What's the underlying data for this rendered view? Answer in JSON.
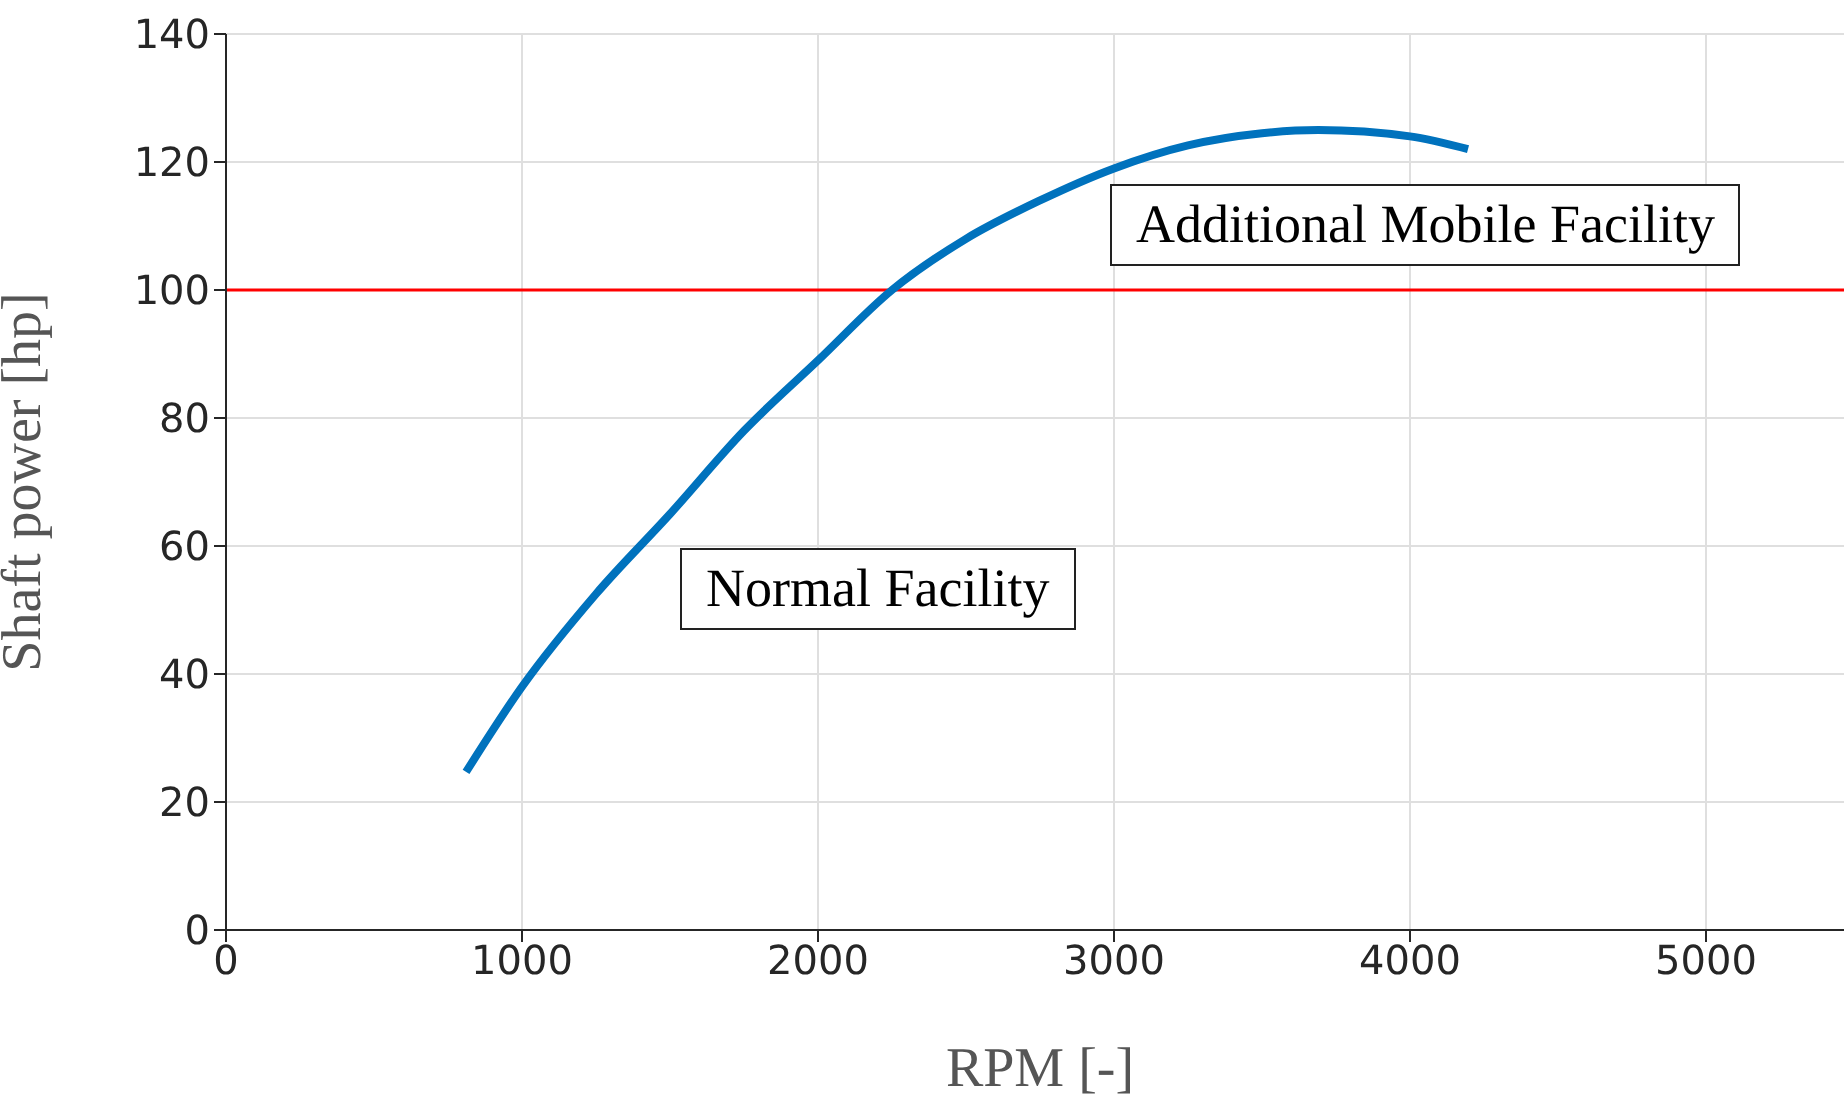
{
  "chart_data": {
    "type": "line",
    "xlabel": "RPM [-]",
    "ylabel": "Shaft power [hp]",
    "x": [
      811,
      1000,
      1250,
      1500,
      1750,
      2000,
      2250,
      2500,
      2750,
      3000,
      3250,
      3500,
      3690,
      4000,
      4196
    ],
    "series": [
      {
        "color": "#0072bd",
        "values": [
          24.7,
          38,
          52.5,
          65,
          78,
          89,
          100,
          108,
          114,
          119,
          122.6,
          124.5,
          125,
          124,
          122
        ]
      }
    ],
    "xlim": [
      0,
      5500
    ],
    "xticks": [
      0,
      1000,
      2000,
      3000,
      4000,
      5000
    ],
    "ylim": [
      0,
      140
    ],
    "yticks": [
      0,
      20,
      40,
      60,
      80,
      100,
      120,
      140
    ],
    "grid": true,
    "marker": "none",
    "line_style": "solid",
    "ref_lines": [
      {
        "axis": "y",
        "value": 100,
        "color": "#ff0000"
      }
    ],
    "annotations": [
      "Additional Mobile Facility",
      "Normal Facility"
    ]
  }
}
